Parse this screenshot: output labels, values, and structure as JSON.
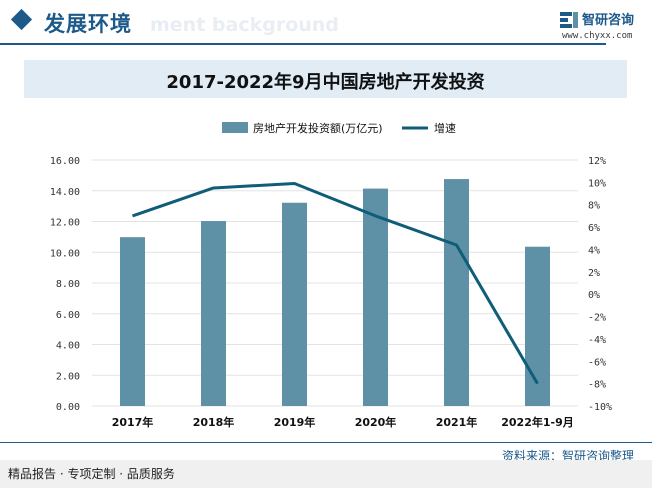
{
  "header": {
    "section_title": "发展环境",
    "watermark_text": "ment background",
    "brand_name": "智研咨询",
    "brand_url": "www.chyxx.com"
  },
  "colors": {
    "brand_blue": "#1d5a8a",
    "bar": "#5e91a6",
    "line": "#0f5d78",
    "title_band": "#e1ecf5"
  },
  "chart_data": {
    "type": "bar",
    "title": "2017-2022年9月中国房地产开发投资",
    "categories": [
      "2017年",
      "2018年",
      "2019年",
      "2020年",
      "2021年",
      "2022年1-9月"
    ],
    "series": [
      {
        "name": "房地产开发投资额(万亿元)",
        "type": "bar",
        "axis": "left",
        "values": [
          10.98,
          12.03,
          13.22,
          14.14,
          14.76,
          10.36
        ]
      },
      {
        "name": "增速",
        "type": "line",
        "axis": "right",
        "values": [
          7.0,
          9.5,
          9.9,
          7.0,
          4.4,
          -8.0
        ]
      }
    ],
    "y_left": {
      "min": 0,
      "max": 16,
      "step": 2,
      "tick_labels": [
        "0.00",
        "2.00",
        "4.00",
        "6.00",
        "8.00",
        "10.00",
        "12.00",
        "14.00",
        "16.00"
      ]
    },
    "y_right": {
      "min": -10,
      "max": 12,
      "step": 2,
      "tick_labels": [
        "-10%",
        "-8%",
        "-6%",
        "-4%",
        "-2%",
        "0%",
        "2%",
        "4%",
        "6%",
        "8%",
        "10%",
        "12%"
      ]
    },
    "grid": true,
    "legend_position": "top-center"
  },
  "footer": {
    "source": "资料来源：智研咨询整理",
    "slogan": "精品报告 · 专项定制 · 品质服务"
  }
}
